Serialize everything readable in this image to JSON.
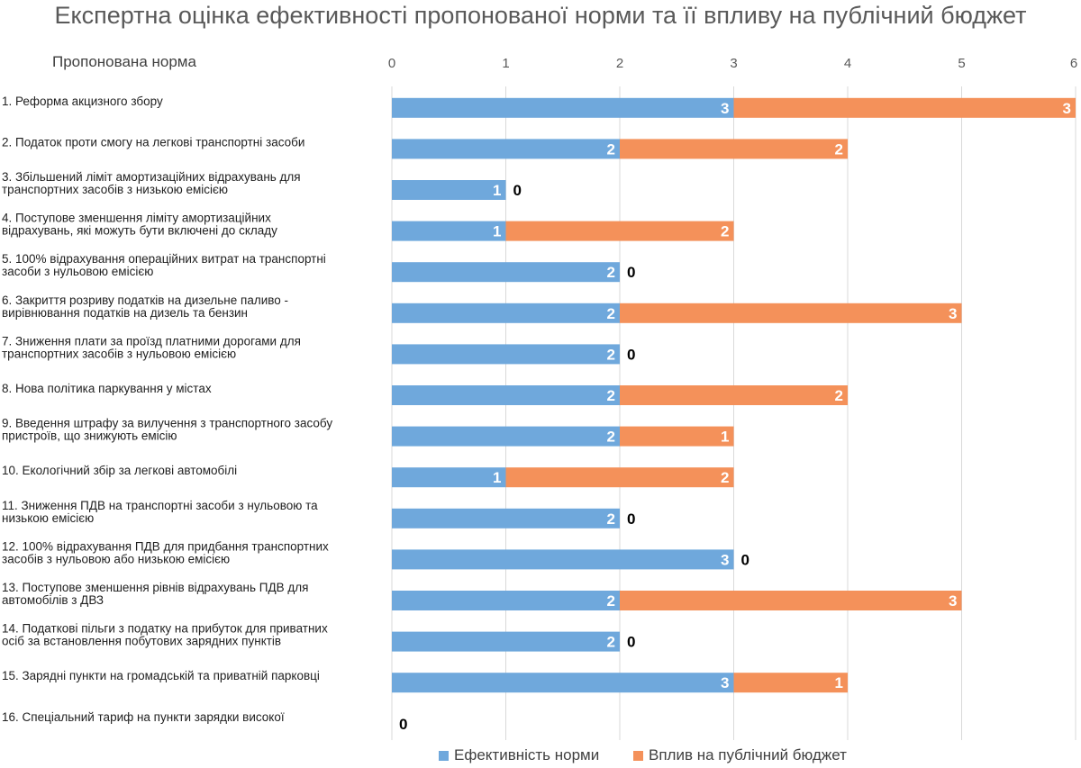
{
  "chart_data": {
    "type": "bar",
    "orientation": "horizontal",
    "stacked": true,
    "title": "Експертна оцінка ефективності пропонованої норми та її впливу на публічний бюджет",
    "category_header": "Пропонована норма",
    "xlim": [
      0,
      6
    ],
    "x_ticks": [
      "0",
      "1",
      "2",
      "3",
      "4",
      "5",
      "6"
    ],
    "x_axis_position": "top",
    "grid": "vertical",
    "legend_position": "bottom",
    "categories": [
      [
        "1. Реформа акцизного збору"
      ],
      [
        "2. Податок проти смогу на легкові транспортні засоби"
      ],
      [
        "3. Збільшений ліміт амортизаційних відрахувань для",
        "транспортних засобів з низькою емісією"
      ],
      [
        "4. Поступове зменшення ліміту амортизаційних",
        "відрахувань, які можуть бути включені до складу"
      ],
      [
        "5. 100% відрахування операційних витрат на транспортні",
        "засоби з нульовою емісією"
      ],
      [
        "6. Закриття розриву податків на дизельне паливо  -",
        "вирівнювання податків на дизель та бензин"
      ],
      [
        "7. Зниження плати за проїзд платними дорогами для",
        "транспортних засобів з нульовою емісією"
      ],
      [
        "8. Нова політика паркування у містах"
      ],
      [
        "9. Введення штрафу за вилучення з транспортного засобу",
        "пристроїв, що знижують емісію"
      ],
      [
        "10. Екологічний збір за легкові автомобілі"
      ],
      [
        "11. Зниження ПДВ на транспортні засоби з нульовою та",
        "низькою емісією"
      ],
      [
        "12. 100% відрахування ПДВ для придбання транспортних",
        "засобів з нульовою або низькою емісією"
      ],
      [
        "13. Поступове зменшення рівнів відрахувань ПДВ для",
        "автомобілів з ДВЗ"
      ],
      [
        "14. Податкові пільги з податку на прибуток для приватних",
        "осіб за встановлення побутових зарядних пунктів"
      ],
      [
        "15. Зарядні пункти на громадській та приватній парковці"
      ],
      [
        "16. Спеціальний тариф на пункти зарядки високої"
      ]
    ],
    "series": [
      {
        "name": "Ефективність норми",
        "color": "#6fa8dc",
        "values": [
          3,
          2,
          1,
          1,
          2,
          2,
          2,
          2,
          2,
          1,
          2,
          3,
          2,
          2,
          3,
          0
        ]
      },
      {
        "name": "Вплив на публічний бюджет",
        "color": "#f4915a",
        "values": [
          3,
          2,
          0,
          2,
          0,
          3,
          0,
          2,
          1,
          2,
          0,
          0,
          3,
          0,
          1,
          0
        ]
      }
    ],
    "data_labels": true
  }
}
